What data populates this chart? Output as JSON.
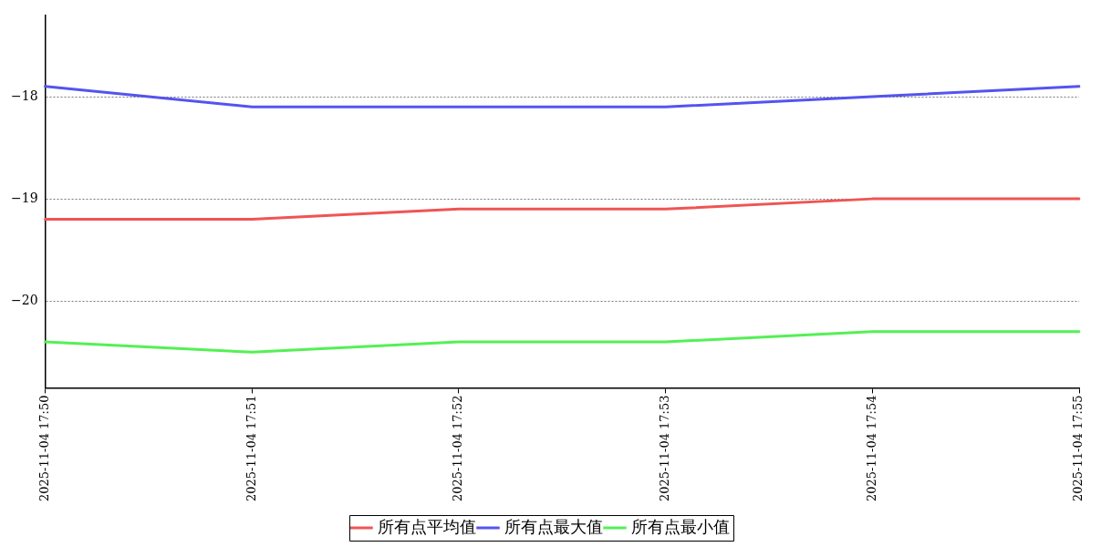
{
  "chart_data": {
    "type": "line",
    "categories": [
      "2025-11-04 17:50",
      "2025-11-04 17:51",
      "2025-11-04 17:52",
      "2025-11-04 17:53",
      "2025-11-04 17:54",
      "2025-11-04 17:55"
    ],
    "series": [
      {
        "name": "所有点平均值",
        "color": "#f05454",
        "values": [
          -19.2,
          -19.2,
          -19.1,
          -19.1,
          -19.0,
          -19.0
        ]
      },
      {
        "name": "所有点最大值",
        "color": "#5454f0",
        "values": [
          -17.9,
          -18.1,
          -18.1,
          -18.1,
          -18.0,
          -17.9
        ]
      },
      {
        "name": "所有点最小值",
        "color": "#54f054",
        "values": [
          -20.4,
          -20.5,
          -20.4,
          -20.4,
          -20.3,
          -20.3
        ]
      }
    ],
    "ylim": [
      -20.85,
      -17.2
    ],
    "yticks": [
      -20,
      -19,
      -18
    ],
    "grid": "y",
    "legend": "bottom",
    "marker": "none",
    "line_style": "solid"
  }
}
